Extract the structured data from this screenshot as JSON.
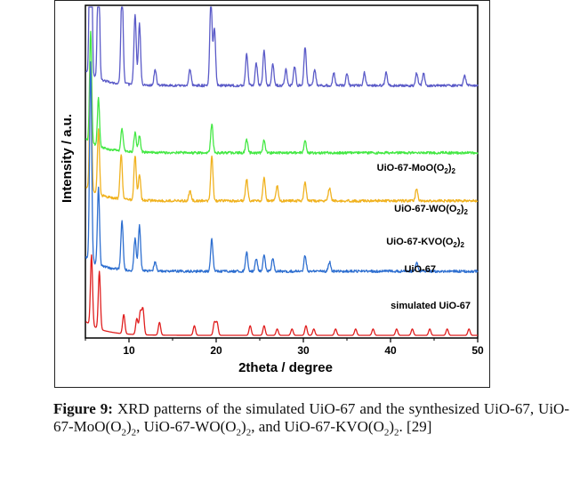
{
  "chart_data": {
    "type": "line",
    "xlabel": "2theta / degree",
    "ylabel": "Intensity / a.u.",
    "xlim": [
      5,
      50
    ],
    "xticks": [
      10,
      20,
      30,
      40,
      50
    ],
    "yticks_shown": false,
    "legend": "inline labels at right of each trace",
    "series": [
      {
        "name": "UiO-67-MoO(O2)2",
        "color": "#5b5bc8",
        "offset": 0.78,
        "peaks": [
          [
            5.6,
            1.0
          ],
          [
            6.5,
            0.42
          ],
          [
            9.2,
            0.3
          ],
          [
            10.7,
            0.22
          ],
          [
            11.2,
            0.19
          ],
          [
            13.0,
            0.05
          ],
          [
            17.0,
            0.05
          ],
          [
            19.4,
            0.28
          ],
          [
            19.8,
            0.18
          ],
          [
            23.5,
            0.1
          ],
          [
            24.6,
            0.07
          ],
          [
            25.5,
            0.11
          ],
          [
            26.5,
            0.07
          ],
          [
            28.0,
            0.05
          ],
          [
            29.0,
            0.06
          ],
          [
            30.2,
            0.12
          ],
          [
            31.3,
            0.05
          ],
          [
            33.5,
            0.04
          ],
          [
            35.0,
            0.04
          ],
          [
            37.0,
            0.04
          ],
          [
            39.5,
            0.04
          ],
          [
            43.0,
            0.04
          ],
          [
            43.8,
            0.04
          ],
          [
            48.5,
            0.03
          ]
        ]
      },
      {
        "name": "UiO-67-WO(O2)2",
        "color": "#44e844",
        "offset": 0.57,
        "peaks": [
          [
            5.6,
            0.35
          ],
          [
            6.5,
            0.15
          ],
          [
            9.2,
            0.07
          ],
          [
            10.7,
            0.06
          ],
          [
            11.2,
            0.05
          ],
          [
            19.5,
            0.09
          ],
          [
            23.5,
            0.04
          ],
          [
            25.5,
            0.04
          ],
          [
            30.2,
            0.04
          ]
        ]
      },
      {
        "name": "UiO-67-KVO(O2)2",
        "color": "#f0b21f",
        "offset": 0.42,
        "peaks": [
          [
            5.6,
            0.4
          ],
          [
            6.5,
            0.2
          ],
          [
            9.1,
            0.14
          ],
          [
            10.7,
            0.14
          ],
          [
            11.2,
            0.08
          ],
          [
            17.0,
            0.03
          ],
          [
            19.5,
            0.14
          ],
          [
            23.5,
            0.07
          ],
          [
            25.5,
            0.07
          ],
          [
            27.0,
            0.05
          ],
          [
            30.2,
            0.06
          ],
          [
            33.0,
            0.04
          ],
          [
            43.0,
            0.04
          ]
        ]
      },
      {
        "name": "UiO-67",
        "color": "#2e6fd0",
        "offset": 0.2,
        "peaks": [
          [
            5.6,
            0.62
          ],
          [
            6.5,
            0.24
          ],
          [
            9.2,
            0.15
          ],
          [
            10.7,
            0.1
          ],
          [
            11.2,
            0.14
          ],
          [
            13.0,
            0.03
          ],
          [
            19.5,
            0.1
          ],
          [
            23.5,
            0.06
          ],
          [
            24.6,
            0.04
          ],
          [
            25.5,
            0.05
          ],
          [
            26.5,
            0.04
          ],
          [
            30.2,
            0.05
          ],
          [
            33.0,
            0.03
          ],
          [
            43.0,
            0.03
          ]
        ]
      },
      {
        "name": "simulated UiO-67",
        "color": "#e01f1f",
        "offset": 0.0,
        "peaks": [
          [
            5.7,
            0.22
          ],
          [
            6.6,
            0.18
          ],
          [
            9.4,
            0.06
          ],
          [
            10.9,
            0.05
          ],
          [
            11.3,
            0.07
          ],
          [
            11.6,
            0.08
          ],
          [
            13.5,
            0.04
          ],
          [
            17.5,
            0.03
          ],
          [
            19.8,
            0.04
          ],
          [
            20.1,
            0.04
          ],
          [
            23.9,
            0.03
          ],
          [
            25.5,
            0.03
          ],
          [
            27.0,
            0.02
          ],
          [
            28.7,
            0.02
          ],
          [
            30.3,
            0.03
          ],
          [
            31.2,
            0.02
          ],
          [
            33.7,
            0.02
          ],
          [
            36.0,
            0.02
          ],
          [
            38.0,
            0.02
          ],
          [
            40.7,
            0.02
          ],
          [
            42.5,
            0.02
          ],
          [
            44.5,
            0.02
          ],
          [
            46.5,
            0.02
          ],
          [
            49.0,
            0.02
          ]
        ]
      }
    ],
    "labels": [
      {
        "main": "UiO-67-MoO(O",
        "sub1": "2",
        "mid": ")",
        "sub2": "2"
      },
      {
        "main": "UiO-67-WO(O",
        "sub1": "2",
        "mid": ")",
        "sub2": "2"
      },
      {
        "main": "UiO-67-KVO(O",
        "sub1": "2",
        "mid": ")",
        "sub2": "2"
      },
      {
        "main": "UiO-67",
        "sub1": "",
        "mid": "",
        "sub2": ""
      },
      {
        "main": "simulated UiO-67",
        "sub1": "",
        "mid": "",
        "sub2": ""
      }
    ]
  },
  "caption": {
    "label": "Figure 9:",
    "parts": [
      " XRD patterns of the simulated UiO-67 and the synthesized UiO-67, UiO-67-MoO(O",
      "2",
      ")",
      "2",
      ", UiO-67-WO(O",
      "2",
      ")",
      "2",
      ", and UiO-67-KVO(O",
      "2",
      ")",
      "2",
      ". [29]"
    ]
  }
}
